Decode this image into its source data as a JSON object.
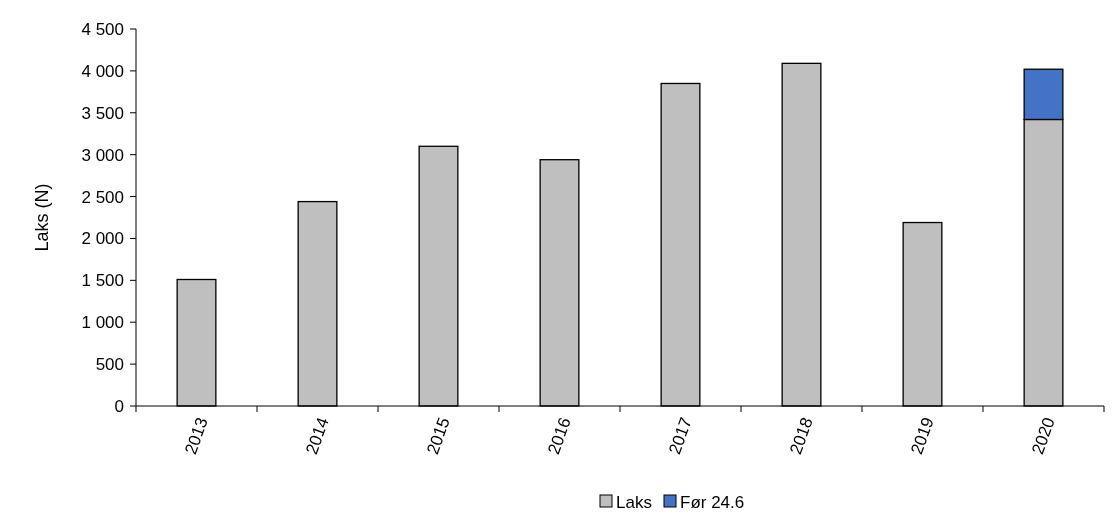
{
  "chart_data": {
    "type": "bar",
    "stacked": true,
    "ylabel": "Laks (N)",
    "categories": [
      "2013",
      "2014",
      "2015",
      "2016",
      "2017",
      "2018",
      "2019",
      "2020"
    ],
    "series": [
      {
        "name": "Laks",
        "color": "#bfbfbf",
        "values": [
          1510,
          2440,
          3100,
          2940,
          3850,
          4090,
          2190,
          3420
        ]
      },
      {
        "name": "Før 24.6",
        "color": "#4472c4",
        "values": [
          null,
          null,
          null,
          null,
          null,
          null,
          null,
          600
        ]
      }
    ],
    "ylim": [
      0,
      4500
    ],
    "yticks": [
      0,
      500,
      {
        "value": 1000,
        "label": "1 000"
      },
      {
        "value": 1500,
        "label": "1 500"
      },
      {
        "value": 2000,
        "label": "2 000"
      },
      {
        "value": 2500,
        "label": "2 500"
      },
      {
        "value": 3000,
        "label": "3 000"
      },
      {
        "value": 3500,
        "label": "3 500"
      },
      {
        "value": 4000,
        "label": "4 000"
      },
      {
        "value": 4500,
        "label": "4 500"
      }
    ],
    "grid": false,
    "legend": "bottom"
  }
}
